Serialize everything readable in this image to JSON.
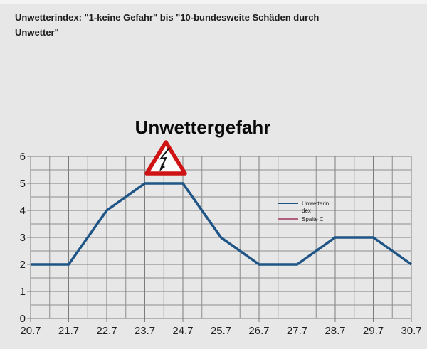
{
  "header": {
    "text": "Unwetterindex: \"1-keine Gefahr\" bis \"10-bundesweite Schäden durch\nUnwetter\""
  },
  "chart": {
    "title": "Unwettergefahr",
    "legend": {
      "items": [
        {
          "label": "Unwetterin\ndex",
          "series": "Unwetterindex"
        },
        {
          "label": "Spalte C",
          "series": "Spalte C"
        }
      ]
    },
    "warning_sign": {
      "meaning": "Unwetter-Warnschild (Blitz)",
      "border_color": "#cf1214",
      "fill_color": "#fcfcfc",
      "bolt_color": "#141414"
    }
  },
  "chart_data": {
    "type": "line",
    "title": "Unwettergefahr",
    "categories": [
      "20.7",
      "21.7",
      "22.7",
      "23.7",
      "24.7",
      "25.7",
      "26.7",
      "27.7",
      "28.7",
      "29.7",
      "30.7"
    ],
    "series": [
      {
        "name": "Unwetterindex",
        "color": "#1f5586",
        "values": [
          2,
          2,
          4,
          5,
          5,
          3,
          2,
          2,
          3,
          3,
          2
        ]
      },
      {
        "name": "Spalte C",
        "color": "#b0607e",
        "values": []
      }
    ],
    "ylim": [
      0,
      6
    ],
    "yticks": [
      0,
      1,
      2,
      3,
      4,
      5,
      6
    ],
    "x_minor_divisions": 2,
    "y_minor_divisions": 2,
    "grid": true,
    "legend_position": "center-right",
    "annotation": "red warning triangle with lightning bolt above the peak between 23.7 and 24.7"
  },
  "colors": {
    "background": "#e7e7e7",
    "grid_major": "#7c7c7c",
    "grid_minor": "#8d8d8d",
    "tick_text": "#1f1f1f"
  }
}
